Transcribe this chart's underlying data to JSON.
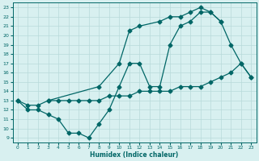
{
  "line1_x": [
    0,
    1,
    2,
    3,
    4,
    5,
    6,
    7,
    8,
    9,
    10,
    11,
    12,
    13,
    14,
    15,
    16,
    17,
    18,
    19,
    20,
    21,
    22,
    23
  ],
  "line1_y": [
    13,
    12,
    12,
    11.5,
    11,
    9.5,
    9.5,
    9,
    10.5,
    12,
    14.5,
    17,
    17,
    14.5,
    14.5,
    19,
    21,
    21.5,
    22.5,
    22.5,
    21.5,
    19,
    17,
    15.5
  ],
  "line2_x": [
    3,
    8,
    10,
    11,
    12,
    14,
    15,
    16,
    17,
    18,
    19,
    20
  ],
  "line2_y": [
    13,
    14.5,
    17,
    20.5,
    21,
    21.5,
    22,
    22,
    22.5,
    23,
    22.5,
    21.5
  ],
  "line3_x": [
    0,
    1,
    2,
    3,
    4,
    5,
    6,
    7,
    8,
    9,
    10,
    11,
    12,
    13,
    14,
    15,
    16,
    17,
    18,
    19,
    20,
    21,
    22,
    23
  ],
  "line3_y": [
    13,
    12.5,
    12.5,
    13,
    13,
    13,
    13,
    13,
    13,
    13.5,
    13.5,
    13.5,
    14,
    14,
    14,
    14,
    14.5,
    14.5,
    14.5,
    15,
    15.5,
    16,
    17,
    15.5
  ],
  "color": "#006666",
  "bg_color": "#d8f0f0",
  "grid_color": "#b8dada",
  "xlabel": "Humidex (Indice chaleur)",
  "xlim": [
    -0.5,
    23.5
  ],
  "ylim": [
    8.5,
    23.5
  ],
  "yticks": [
    9,
    10,
    11,
    12,
    13,
    14,
    15,
    16,
    17,
    18,
    19,
    20,
    21,
    22,
    23
  ],
  "xticks": [
    0,
    1,
    2,
    3,
    4,
    5,
    6,
    7,
    8,
    9,
    10,
    11,
    12,
    13,
    14,
    15,
    16,
    17,
    18,
    19,
    20,
    21,
    22,
    23
  ]
}
